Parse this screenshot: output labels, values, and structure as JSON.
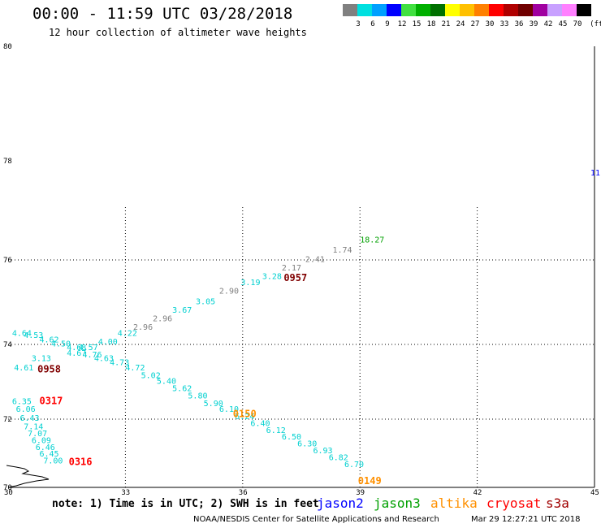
{
  "header": {
    "title": "00:00 - 11:59 UTC 03/28/2018",
    "subtitle": "12 hour collection of altimeter wave heights"
  },
  "colorbar": {
    "unit": "(ft)",
    "bins": [
      {
        "label": "3",
        "color": "#808080"
      },
      {
        "label": "6",
        "color": "#00e0e0"
      },
      {
        "label": "9",
        "color": "#00a0ff"
      },
      {
        "label": "12",
        "color": "#0000ff"
      },
      {
        "label": "15",
        "color": "#40e040"
      },
      {
        "label": "18",
        "color": "#00b000"
      },
      {
        "label": "21",
        "color": "#007000"
      },
      {
        "label": "24",
        "color": "#ffff00"
      },
      {
        "label": "27",
        "color": "#ffc000"
      },
      {
        "label": "30",
        "color": "#ff8000"
      },
      {
        "label": "33",
        "color": "#ff0000"
      },
      {
        "label": "36",
        "color": "#b00000"
      },
      {
        "label": "39",
        "color": "#700000"
      },
      {
        "label": "42",
        "color": "#a000a0"
      },
      {
        "label": "45",
        "color": "#c8a0ff"
      },
      {
        "label": "70",
        "color": "#ff80ff"
      },
      {
        "label": "",
        "color": "#000000"
      }
    ]
  },
  "map": {
    "lon_labels": [
      "30",
      "33",
      "36",
      "39",
      "42",
      "45"
    ],
    "lat_labels": [
      "80",
      "78",
      "76",
      "74",
      "72",
      "70"
    ],
    "lat_range": [
      70,
      80
    ],
    "lon_range": [
      30,
      45
    ],
    "grid_lons": [
      33,
      36,
      39,
      42
    ],
    "grid_lats": [
      76,
      74,
      72
    ],
    "edge_value": "11",
    "values": [
      {
        "text": "18.27",
        "lon": 39.0,
        "lat": 76.35,
        "color": "#00a000"
      },
      {
        "text": "1.74",
        "lon": 38.3,
        "lat": 76.15,
        "color": "#808080"
      },
      {
        "text": "2.41",
        "lon": 37.6,
        "lat": 75.95,
        "color": "#808080"
      },
      {
        "text": "2.17",
        "lon": 37.0,
        "lat": 75.75,
        "color": "#808080"
      },
      {
        "text": "3.28",
        "lon": 36.5,
        "lat": 75.55,
        "color": "#00d0d0"
      },
      {
        "text": "3.19",
        "lon": 35.95,
        "lat": 75.4,
        "color": "#00d0d0"
      },
      {
        "text": "2.90",
        "lon": 35.4,
        "lat": 75.2,
        "color": "#808080"
      },
      {
        "text": "3.05",
        "lon": 34.8,
        "lat": 74.95,
        "color": "#00d0d0"
      },
      {
        "text": "3.67",
        "lon": 34.2,
        "lat": 74.75,
        "color": "#00d0d0"
      },
      {
        "text": "2.96",
        "lon": 33.7,
        "lat": 74.55,
        "color": "#808080"
      },
      {
        "text": "2.96",
        "lon": 33.2,
        "lat": 74.35,
        "color": "#808080"
      },
      {
        "text": "4.22",
        "lon": 32.8,
        "lat": 74.2,
        "color": "#00d0d0"
      },
      {
        "text": "4.00",
        "lon": 32.3,
        "lat": 74.0,
        "color": "#00d0d0"
      },
      {
        "text": "4.57",
        "lon": 31.8,
        "lat": 73.85,
        "color": "#00d0d0"
      },
      {
        "text": "4.68",
        "lon": 31.5,
        "lat": 73.85,
        "color": "#00d0d0"
      },
      {
        "text": "4.50",
        "lon": 31.1,
        "lat": 73.95,
        "color": "#00d0d0"
      },
      {
        "text": "4.62",
        "lon": 30.8,
        "lat": 74.05,
        "color": "#00d0d0"
      },
      {
        "text": "4.53",
        "lon": 30.4,
        "lat": 74.15,
        "color": "#00d0d0"
      },
      {
        "text": "4.64",
        "lon": 30.1,
        "lat": 74.2,
        "color": "#00d0d0"
      },
      {
        "text": "4.67",
        "lon": 31.5,
        "lat": 73.7,
        "color": "#00d0d0"
      },
      {
        "text": "4.76",
        "lon": 31.9,
        "lat": 73.65,
        "color": "#00d0d0"
      },
      {
        "text": "4.63",
        "lon": 32.2,
        "lat": 73.55,
        "color": "#00d0d0"
      },
      {
        "text": "4.73",
        "lon": 32.6,
        "lat": 73.45,
        "color": "#00d0d0"
      },
      {
        "text": "4.72",
        "lon": 33.0,
        "lat": 73.3,
        "color": "#00d0d0"
      },
      {
        "text": "5.02",
        "lon": 33.4,
        "lat": 73.1,
        "color": "#00d0d0"
      },
      {
        "text": "5.40",
        "lon": 33.8,
        "lat": 72.95,
        "color": "#00d0d0"
      },
      {
        "text": "5.62",
        "lon": 34.2,
        "lat": 72.75,
        "color": "#00d0d0"
      },
      {
        "text": "5.80",
        "lon": 34.6,
        "lat": 72.55,
        "color": "#00d0d0"
      },
      {
        "text": "5.90",
        "lon": 35.0,
        "lat": 72.35,
        "color": "#00d0d0"
      },
      {
        "text": "6.10",
        "lon": 35.4,
        "lat": 72.2,
        "color": "#00d0d0"
      },
      {
        "text": "6.24",
        "lon": 35.8,
        "lat": 72.0,
        "color": "#00d0d0"
      },
      {
        "text": "6.40",
        "lon": 36.2,
        "lat": 71.8,
        "color": "#00d0d0"
      },
      {
        "text": "6.12",
        "lon": 36.6,
        "lat": 71.6,
        "color": "#00d0d0"
      },
      {
        "text": "6.50",
        "lon": 37.0,
        "lat": 71.4,
        "color": "#00d0d0"
      },
      {
        "text": "6.30",
        "lon": 37.4,
        "lat": 71.2,
        "color": "#00d0d0"
      },
      {
        "text": "6.93",
        "lon": 37.8,
        "lat": 71.0,
        "color": "#00d0d0"
      },
      {
        "text": "6.82",
        "lon": 38.2,
        "lat": 70.8,
        "color": "#00d0d0"
      },
      {
        "text": "6.70",
        "lon": 38.6,
        "lat": 70.6,
        "color": "#00d0d0"
      },
      {
        "text": "4.61",
        "lon": 30.15,
        "lat": 73.3,
        "color": "#00d0d0"
      },
      {
        "text": "3.13",
        "lon": 30.6,
        "lat": 73.55,
        "color": "#00d0d0"
      },
      {
        "text": "6.35",
        "lon": 30.1,
        "lat": 72.4,
        "color": "#00d0d0"
      },
      {
        "text": "6.06",
        "lon": 30.2,
        "lat": 72.2,
        "color": "#00d0d0"
      },
      {
        "text": "6.43",
        "lon": 30.3,
        "lat": 71.95,
        "color": "#00d0d0"
      },
      {
        "text": "7.14",
        "lon": 30.4,
        "lat": 71.7,
        "color": "#00d0d0"
      },
      {
        "text": "7.07",
        "lon": 30.5,
        "lat": 71.5,
        "color": "#00d0d0"
      },
      {
        "text": "6.09",
        "lon": 30.6,
        "lat": 71.3,
        "color": "#00d0d0"
      },
      {
        "text": "6.46",
        "lon": 30.7,
        "lat": 71.1,
        "color": "#00d0d0"
      },
      {
        "text": "6.45",
        "lon": 30.8,
        "lat": 70.9,
        "color": "#00d0d0"
      },
      {
        "text": "7.00",
        "lon": 30.9,
        "lat": 70.7,
        "color": "#00d0d0"
      }
    ],
    "pass_times": [
      {
        "text": "0957",
        "lon": 37.05,
        "lat": 75.5,
        "color": "#800000"
      },
      {
        "text": "0958",
        "lon": 30.75,
        "lat": 73.25,
        "color": "#800000"
      },
      {
        "text": "0317",
        "lon": 30.8,
        "lat": 72.4,
        "color": "#ff0000"
      },
      {
        "text": "0316",
        "lon": 31.55,
        "lat": 70.65,
        "color": "#ff0000"
      },
      {
        "text": "0150",
        "lon": 35.75,
        "lat": 72.05,
        "color": "#ff9000"
      },
      {
        "text": "0149",
        "lon": 38.95,
        "lat": 70.1,
        "color": "#ff9000"
      }
    ]
  },
  "footer": {
    "note": "note: 1) Time is in UTC; 2) SWH is in feet",
    "satellites": [
      {
        "name": "jason2",
        "color": "#0000ff"
      },
      {
        "name": "jason3",
        "color": "#00a000"
      },
      {
        "name": "altika",
        "color": "#ff9000"
      },
      {
        "name": "cryosat",
        "color": "#ff0000"
      },
      {
        "name": "s3a",
        "color": "#a00000"
      }
    ],
    "credit": "NOAA/NESDIS Center for Satellite Applications and Research",
    "timestamp": "Mar 29 12:27:21 UTC 2018"
  }
}
